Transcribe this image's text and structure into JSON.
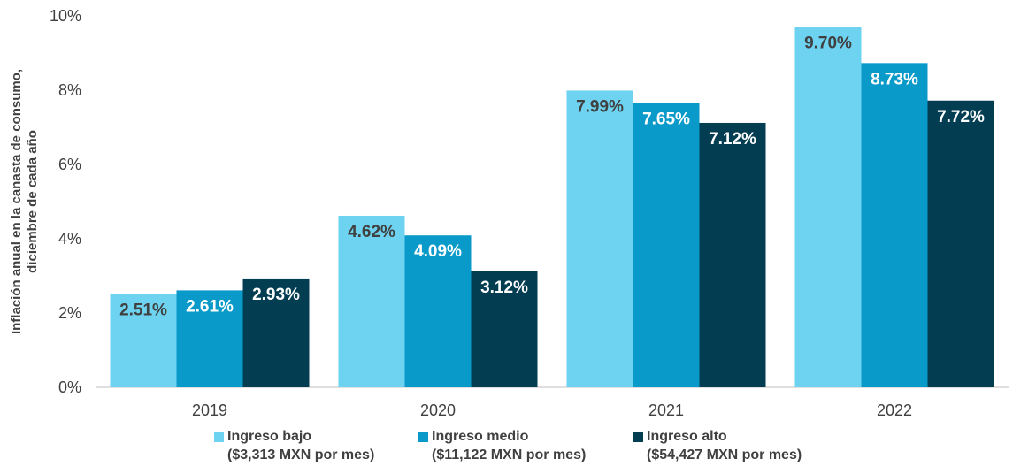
{
  "chart_data": {
    "type": "bar",
    "title": "",
    "xlabel": "",
    "ylabel_lines": [
      "Inflación anual en la canasta de consumo,",
      "diciembre de cada año"
    ],
    "categories": [
      "2019",
      "2020",
      "2021",
      "2022"
    ],
    "ylim": [
      0,
      10
    ],
    "yticks": [
      "0%",
      "2%",
      "4%",
      "6%",
      "8%",
      "10%"
    ],
    "grid": false,
    "legend_position": "bottom",
    "series": [
      {
        "name": "Ingreso bajo",
        "legend_lines": [
          "Ingreso bajo",
          "($3,313 MXN por mes)"
        ],
        "color": "#6dd3f0",
        "label_color": "#404040",
        "values": [
          2.51,
          4.62,
          7.99,
          9.7
        ],
        "labels": [
          "2.51%",
          "4.62%",
          "7.99%",
          "9.70%"
        ]
      },
      {
        "name": "Ingreso medio",
        "legend_lines": [
          "Ingreso medio",
          "($11,122 MXN por mes)"
        ],
        "color": "#0a9ac9",
        "label_color": "#ffffff",
        "values": [
          2.61,
          4.09,
          7.65,
          8.73
        ],
        "labels": [
          "2.61%",
          "4.09%",
          "7.65%",
          "8.73%"
        ]
      },
      {
        "name": "Ingreso alto",
        "legend_lines": [
          "Ingreso alto",
          "($54,427 MXN por mes)"
        ],
        "color": "#033d52",
        "label_color": "#ffffff",
        "values": [
          2.93,
          3.12,
          7.12,
          7.72
        ],
        "labels": [
          "2.93%",
          "3.12%",
          "7.12%",
          "7.72%"
        ]
      }
    ]
  }
}
